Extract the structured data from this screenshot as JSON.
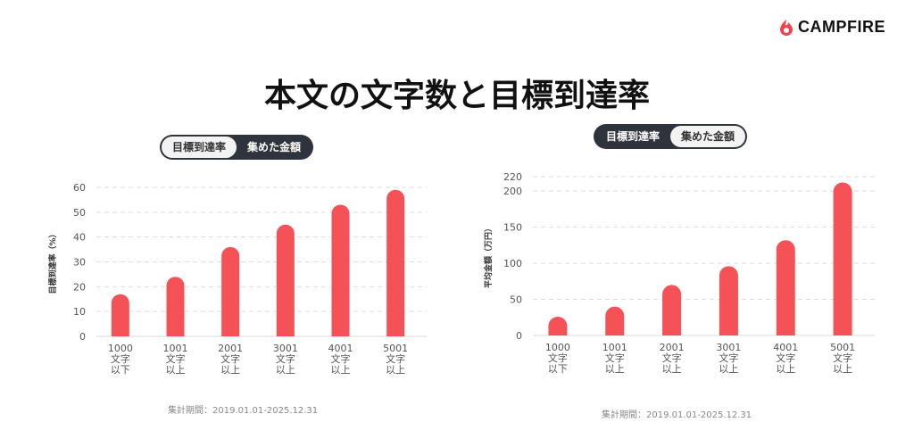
{
  "brand": {
    "name": "CAMPFIRE",
    "color": "#f0424b"
  },
  "title": "本文の文字数と目標到達率",
  "accent_color": "#f55257",
  "toggles": [
    {
      "options": [
        "目標到達率",
        "集めた金額"
      ],
      "active": 0
    },
    {
      "options": [
        "目標到達率",
        "集めた金額"
      ],
      "active": 1
    }
  ],
  "period": "集計期間：2019.01.01-2025.12.31",
  "chart_data": [
    {
      "type": "bar",
      "ylabel": "目標到達率（%）",
      "categories": [
        [
          "1000",
          "文字",
          "以下"
        ],
        [
          "1001",
          "文字",
          "以上"
        ],
        [
          "2001",
          "文字",
          "以上"
        ],
        [
          "3001",
          "文字",
          "以上"
        ],
        [
          "4001",
          "文字",
          "以上"
        ],
        [
          "5001",
          "文字",
          "以上"
        ]
      ],
      "values": [
        17,
        24,
        36,
        45,
        53,
        59
      ],
      "yticks": [
        0,
        10,
        20,
        30,
        40,
        50,
        60
      ],
      "ylim": [
        0,
        60
      ],
      "grid": true
    },
    {
      "type": "bar",
      "ylabel": "平均金額（万円）",
      "categories": [
        [
          "1000",
          "文字",
          "以下"
        ],
        [
          "1001",
          "文字",
          "以上"
        ],
        [
          "2001",
          "文字",
          "以上"
        ],
        [
          "3001",
          "文字",
          "以上"
        ],
        [
          "4001",
          "文字",
          "以上"
        ],
        [
          "5001",
          "文字",
          "以上"
        ]
      ],
      "values": [
        26,
        40,
        70,
        96,
        132,
        212
      ],
      "yticks": [
        0,
        50,
        100,
        150,
        200,
        220
      ],
      "ylim": [
        0,
        220
      ],
      "grid": true
    }
  ]
}
